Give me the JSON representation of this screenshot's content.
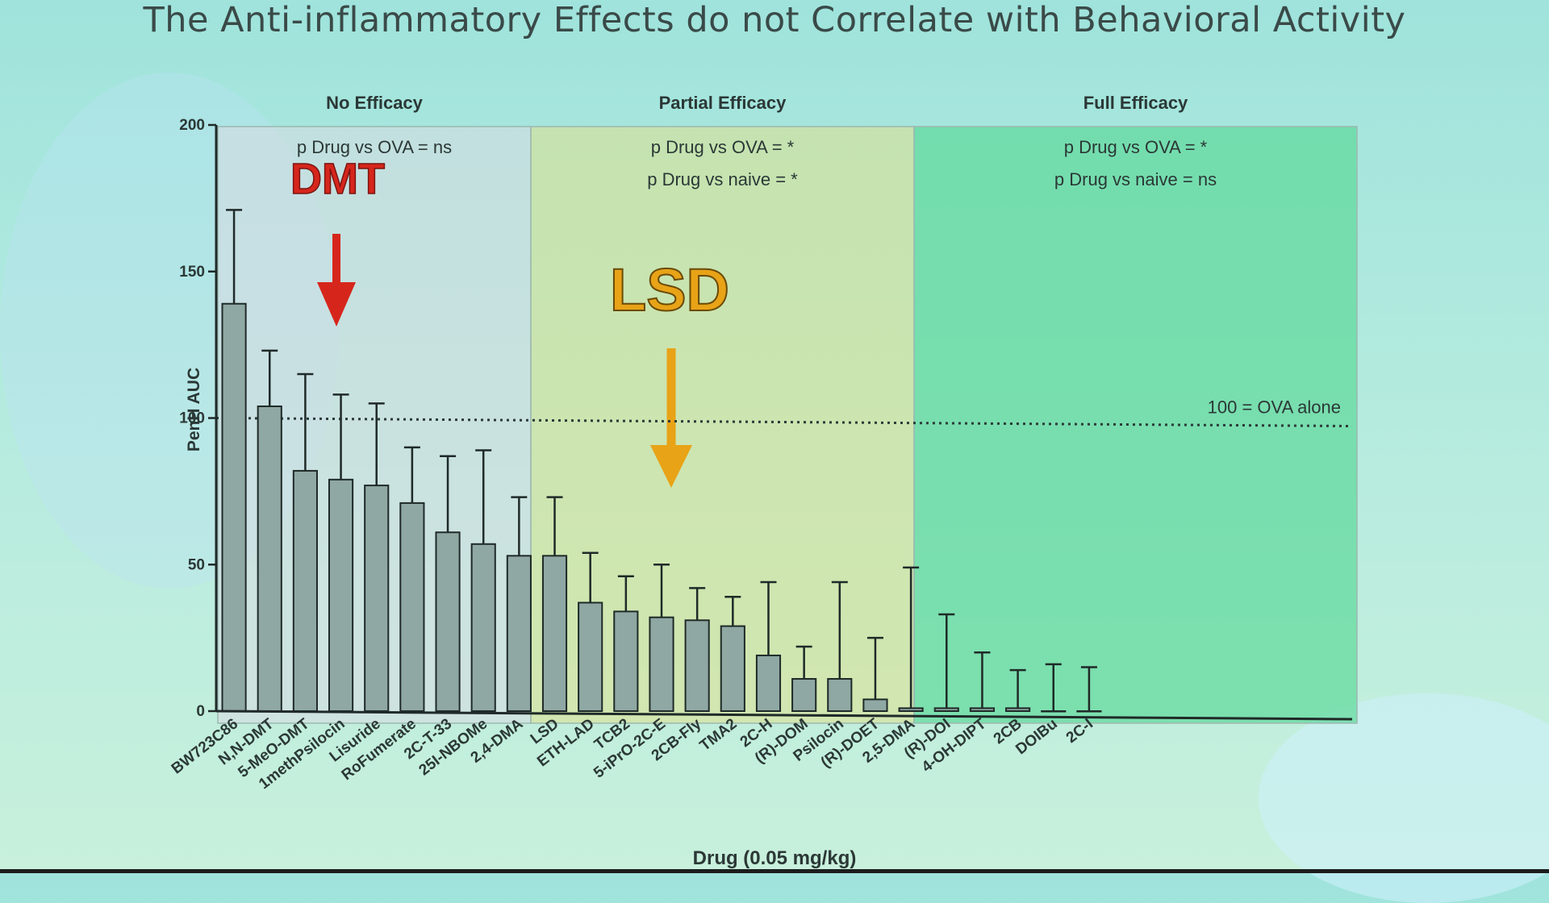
{
  "slide": {
    "title": "The Anti-inflammatory Effects do not Correlate with Behavioral Activity"
  },
  "regions": [
    {
      "label": "No Efficacy",
      "stats": [
        "p  Drug vs OVA = ns"
      ],
      "callout": "DMT",
      "callout_color": "#d6261c",
      "color": "#d9dbe0"
    },
    {
      "label": "Partial Efficacy",
      "stats": [
        "p  Drug vs OVA = *",
        "p  Drug vs naive = *"
      ],
      "callout": "LSD",
      "callout_color": "#e8a317",
      "color": "#dfe08a"
    },
    {
      "label": "Full Efficacy",
      "stats": [
        "p  Drug vs OVA = *",
        "p  Drug vs naive = ns"
      ],
      "callout": "",
      "callout_color": "",
      "color": "#5ed99a"
    }
  ],
  "reference_line": {
    "value": 100,
    "label": "100 = OVA alone"
  },
  "chart_data": {
    "type": "bar",
    "title": "",
    "xlabel": "Drug (0.05 mg/kg)",
    "ylabel": "PenH AUC",
    "ylim": [
      0,
      200
    ],
    "yticks": [
      0,
      50,
      100,
      150,
      200
    ],
    "grid": false,
    "error_bars": "upper only",
    "categories": [
      "BW723C86",
      "N,N-DMT",
      "5-MeO-DMT",
      "1methPsilocin",
      "Lisuride",
      "RoFumerate",
      "2C-T-33",
      "25I-NBOMe",
      "2,4-DMA",
      "LSD",
      "ETH-LAD",
      "TCB2",
      "5-iPrO-2C-E",
      "2CB-Fly",
      "TMA2",
      "2C-H",
      "(R)-DOM",
      "Psilocin",
      "(R)-DOET",
      "2,5-DMA",
      "(R)-DOI",
      "4-OH-DIPT",
      "2CB",
      "DOIBu",
      "2C-I"
    ],
    "values": [
      139,
      104,
      82,
      79,
      77,
      71,
      61,
      57,
      53,
      53,
      37,
      34,
      32,
      31,
      29,
      19,
      11,
      11,
      4,
      1,
      1,
      1,
      1,
      0,
      0
    ],
    "error_upper": [
      171,
      123,
      115,
      108,
      105,
      90,
      87,
      89,
      73,
      73,
      54,
      46,
      50,
      42,
      39,
      44,
      22,
      44,
      25,
      49,
      33,
      20,
      14,
      16,
      15
    ],
    "bar_color": "#8fa8a3",
    "bar_edge": "#1f2a28"
  }
}
